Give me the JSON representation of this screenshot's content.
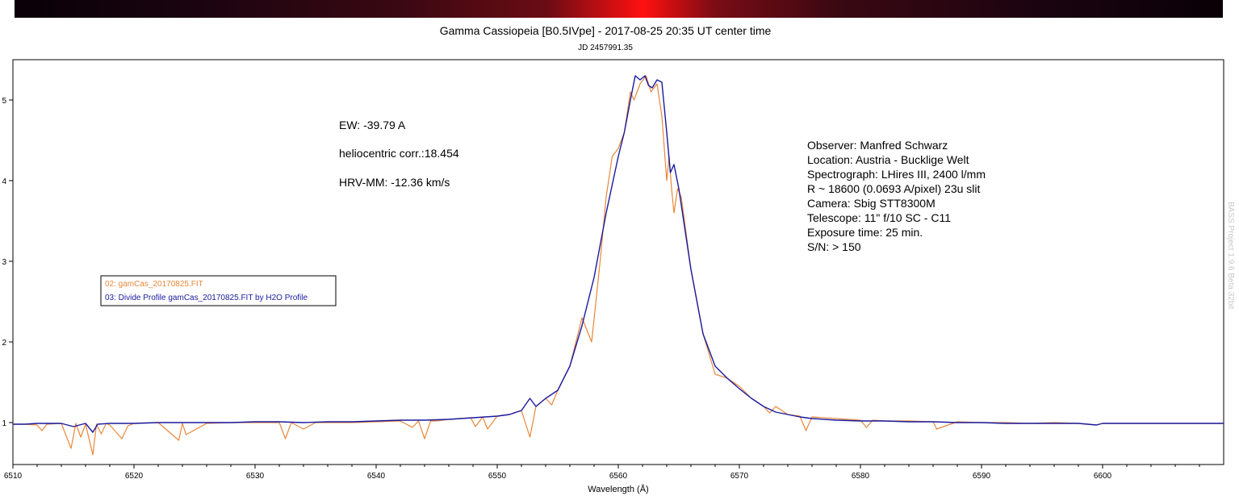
{
  "spectrum_strip": {
    "colors": [
      "#0a0006",
      "#6a0c14",
      "#ff1010"
    ]
  },
  "chart_data": {
    "type": "line",
    "title": "Gamma Cassiopeia [B0.5IVpe] - 2017-08-25 20:35 UT center time",
    "subtitle": "JD 2457991.35",
    "xlabel": "Wavelength (Å)",
    "ylabel": "",
    "xlim": [
      6510,
      6610
    ],
    "ylim": [
      0.48,
      5.5
    ],
    "x_ticks": [
      "6510",
      "6520",
      "6530",
      "6540",
      "6550",
      "6560",
      "6570",
      "6580",
      "6590",
      "6600"
    ],
    "y_ticks": [
      "1",
      "2",
      "3",
      "4",
      "5"
    ],
    "grid": false,
    "legend_position": "left",
    "annotations_left": [
      "EW: -39.79 A",
      "heliocentric corr.:18.454",
      "HRV-MM: -12.36 km/s"
    ],
    "annotations_right": [
      "Observer: Manfred Schwarz",
      "Location: Austria - Bucklige Welt",
      "Spectrograph: LHires III, 2400 l/mm",
      "R ~ 18600 (0.0693 A/pixel) 23u slit",
      "Camera: Sbig STT8300M",
      "Telescope: 11\" f/10 SC - C11",
      "Exposure time: 25 min.",
      "S/N:  > 150"
    ],
    "watermark": "BASS Project 1.9.6 Beta  32bit",
    "series": [
      {
        "name": "02: gamCas_20170825.FIT",
        "color": "#e8873a",
        "x": [
          6510,
          6511,
          6512,
          6512.4,
          6512.8,
          6514,
          6514.8,
          6515.2,
          6515.6,
          6516,
          6516.6,
          6516.9,
          6517.3,
          6517.7,
          6518,
          6519,
          6519.5,
          6520,
          6522,
          6523.7,
          6524,
          6524.3,
          6526,
          6528,
          6530,
          6532,
          6532.5,
          6533,
          6534,
          6535,
          6536,
          6538,
          6540,
          6542,
          6543,
          6543.5,
          6544,
          6544.5,
          6545,
          6546,
          6547.8,
          6548.2,
          6548.8,
          6549.2,
          6550,
          6551,
          6552,
          6552.7,
          6553.2,
          6554,
          6554.5,
          6555,
          6556,
          6557,
          6557.8,
          6558.5,
          6559,
          6559.5,
          6560,
          6560.5,
          6561,
          6561.3,
          6561.8,
          6562.3,
          6562.7,
          6563.2,
          6563.6,
          6564,
          6564.2,
          6564.4,
          6564.6,
          6564.9,
          6565.2,
          6566,
          6567,
          6568,
          6569,
          6570,
          6571,
          6572,
          6572.5,
          6573,
          6574,
          6575,
          6575.5,
          6576,
          6578,
          6580,
          6580.5,
          6581,
          6582,
          6584,
          6586,
          6586.3,
          6588,
          6590,
          6592,
          6594,
          6596,
          6598,
          6599.5,
          6600,
          6602,
          6604,
          6606,
          6608,
          6610
        ],
        "y": [
          0.98,
          0.98,
          0.97,
          0.9,
          0.98,
          0.99,
          0.68,
          0.99,
          0.82,
          0.98,
          0.6,
          0.98,
          0.86,
          0.99,
          0.97,
          0.8,
          0.96,
          0.99,
          1.0,
          0.78,
          0.99,
          0.85,
          0.99,
          1.0,
          1.0,
          1.0,
          0.8,
          1.0,
          0.92,
          1.0,
          1.0,
          1.0,
          1.01,
          1.02,
          0.94,
          1.02,
          0.8,
          1.02,
          1.02,
          1.04,
          1.06,
          0.95,
          1.07,
          0.92,
          1.08,
          1.1,
          1.15,
          0.82,
          1.2,
          1.3,
          1.22,
          1.4,
          1.7,
          2.3,
          2.0,
          3.0,
          3.8,
          4.3,
          4.4,
          4.6,
          5.1,
          5.0,
          5.2,
          5.3,
          5.1,
          5.2,
          4.8,
          4.0,
          4.3,
          3.9,
          3.6,
          3.9,
          3.8,
          2.9,
          2.1,
          1.6,
          1.55,
          1.45,
          1.3,
          1.2,
          1.12,
          1.2,
          1.1,
          1.08,
          0.9,
          1.07,
          1.05,
          1.03,
          0.94,
          1.03,
          1.02,
          1.02,
          1.01,
          0.92,
          1.01,
          1.0,
          1.0,
          0.99,
          1.0,
          0.99,
          0.97,
          0.99,
          0.99,
          0.99,
          0.99,
          0.99,
          0.99
        ]
      },
      {
        "name": "03: Divide Profile gamCas_20170825.FIT by H2O Profile",
        "color": "#1a1a9e",
        "x": [
          6510,
          6511,
          6512,
          6513,
          6514,
          6515,
          6516,
          6516.6,
          6517,
          6518,
          6520,
          6522,
          6524,
          6526,
          6528,
          6530,
          6532,
          6534,
          6536,
          6538,
          6540,
          6542,
          6544,
          6546,
          6548,
          6550,
          6551,
          6552,
          6552.7,
          6553.2,
          6554,
          6555,
          6556,
          6557,
          6558,
          6559,
          6560,
          6560.5,
          6561,
          6561.4,
          6561.8,
          6562.2,
          6562.5,
          6562.8,
          6563.2,
          6563.6,
          6564,
          6564.3,
          6564.6,
          6565,
          6566,
          6567,
          6568,
          6569,
          6570,
          6571,
          6572,
          6573,
          6574,
          6575,
          6576,
          6578,
          6580,
          6582,
          6584,
          6586,
          6588,
          6590,
          6592,
          6594,
          6596,
          6598,
          6599.5,
          6600,
          6602,
          6604,
          6606,
          6608,
          6610
        ],
        "y": [
          0.98,
          0.98,
          0.99,
          0.99,
          0.99,
          0.95,
          0.99,
          0.88,
          0.98,
          0.99,
          0.99,
          1.0,
          1.0,
          1.0,
          1.0,
          1.01,
          1.01,
          1.0,
          1.01,
          1.01,
          1.02,
          1.03,
          1.03,
          1.04,
          1.06,
          1.08,
          1.1,
          1.15,
          1.3,
          1.2,
          1.3,
          1.4,
          1.7,
          2.2,
          2.8,
          3.6,
          4.3,
          4.6,
          5.0,
          5.3,
          5.25,
          5.3,
          5.18,
          5.15,
          5.25,
          5.22,
          4.6,
          4.1,
          4.2,
          3.9,
          2.9,
          2.1,
          1.7,
          1.55,
          1.42,
          1.3,
          1.2,
          1.13,
          1.1,
          1.07,
          1.05,
          1.03,
          1.02,
          1.02,
          1.01,
          1.01,
          1.0,
          1.0,
          0.99,
          0.99,
          0.99,
          0.99,
          0.97,
          0.99,
          0.99,
          0.99,
          0.99,
          0.99,
          0.99
        ]
      }
    ]
  }
}
